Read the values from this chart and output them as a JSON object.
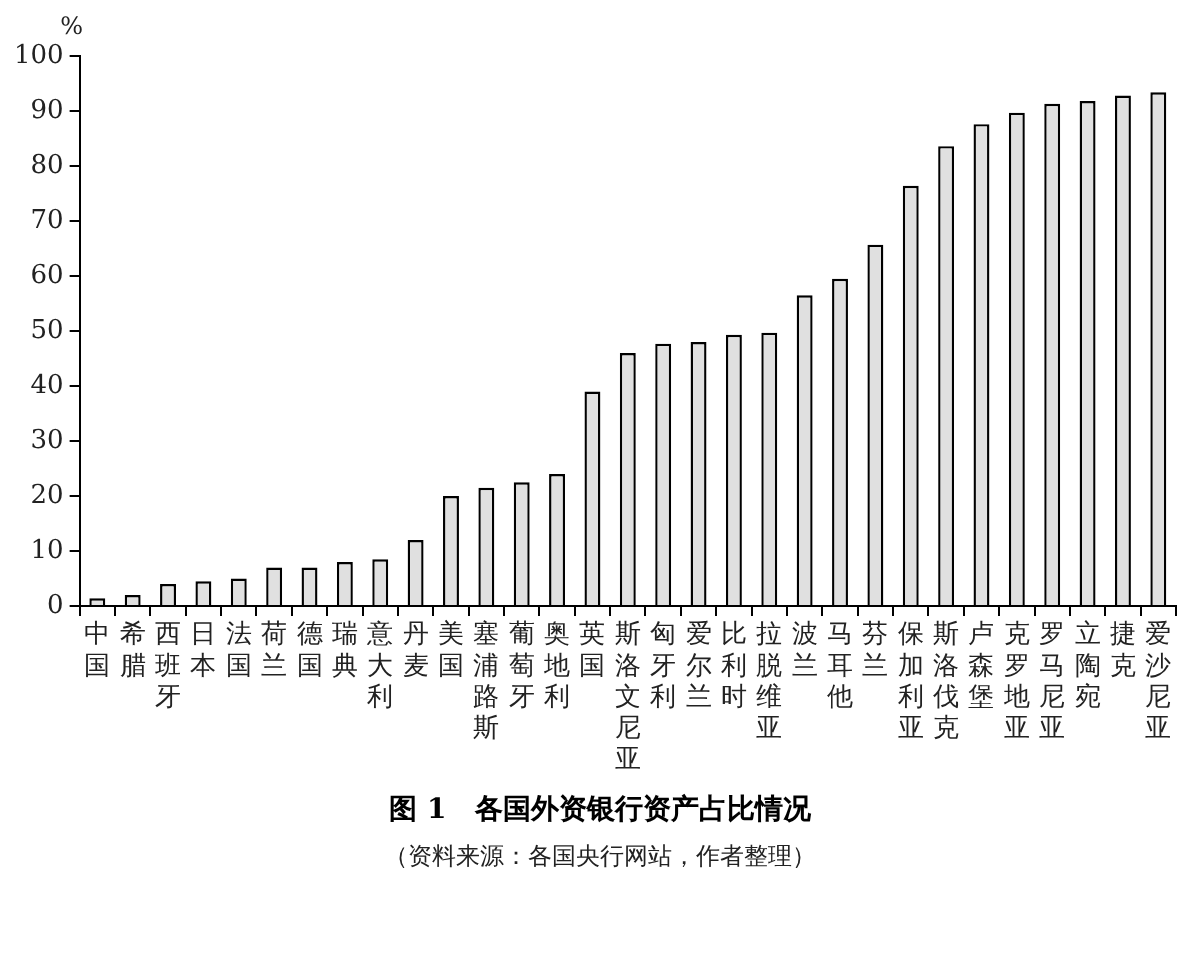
{
  "chart_data": {
    "type": "bar",
    "title": "图 1　各国外资银行资产占比情况",
    "ylabel": "%",
    "annotations": [
      "（资料来源：各国央行网站，作者整理）"
    ],
    "categories": [
      "中国",
      "希腊",
      "西班牙",
      "日本",
      "法国",
      "荷兰",
      "德国",
      "瑞典",
      "意大利",
      "丹麦",
      "美国",
      "塞浦路斯",
      "葡萄牙",
      "奥地利",
      "英国",
      "斯洛文尼亚",
      "匈牙利",
      "爱尔兰",
      "比利时",
      "拉脱维亚",
      "波兰",
      "马耳他",
      "芬兰",
      "保加利亚",
      "斯洛伐克",
      "卢森堡",
      "克罗地亚",
      "罗马尼亚",
      "立陶宛",
      "捷克",
      "爱沙尼亚"
    ],
    "values": [
      1.4,
      2,
      4,
      4.5,
      5,
      7,
      7,
      8,
      8.5,
      12,
      20,
      21.5,
      22.5,
      24,
      39,
      46,
      47.7,
      48,
      49.3,
      49.7,
      56.5,
      59.5,
      65.7,
      76.4,
      83.6,
      87.6,
      89.7,
      91.3,
      91.8,
      92.8,
      93.4
    ],
    "color": "#e0e0e0",
    "ylim": [
      0,
      100
    ],
    "yticks": [
      0,
      10,
      20,
      30,
      40,
      50,
      60,
      70,
      80,
      90,
      100
    ],
    "grid": false,
    "legend": false
  }
}
